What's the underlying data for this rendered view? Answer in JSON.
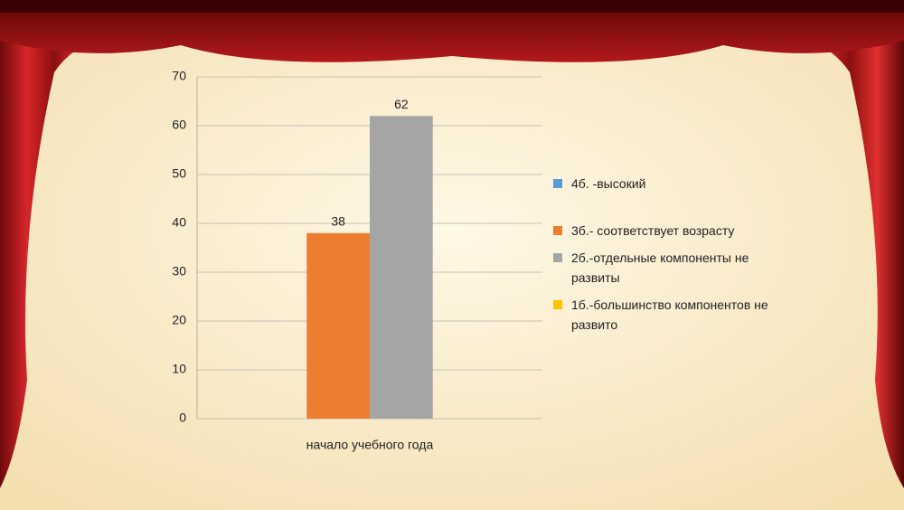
{
  "chart_data": {
    "type": "bar",
    "categories": [
      "начало учебного года"
    ],
    "series": [
      {
        "name": "4б. -высокий",
        "color": "#5b9bd5",
        "values": [
          null
        ]
      },
      {
        "name": "3б.- соответствует возрасту",
        "color": "#ed7d31",
        "values": [
          38
        ]
      },
      {
        "name": "2б.-отдельные компоненты не развиты",
        "color": "#a5a5a5",
        "values": [
          62
        ]
      },
      {
        "name": "1б.-большинство компонентов не развито",
        "color": "#ffc000",
        "values": [
          null
        ]
      }
    ],
    "ylim": [
      0,
      70
    ],
    "yticks": [
      0,
      10,
      20,
      30,
      40,
      50,
      60,
      70
    ],
    "grid": true,
    "legend": "right"
  }
}
